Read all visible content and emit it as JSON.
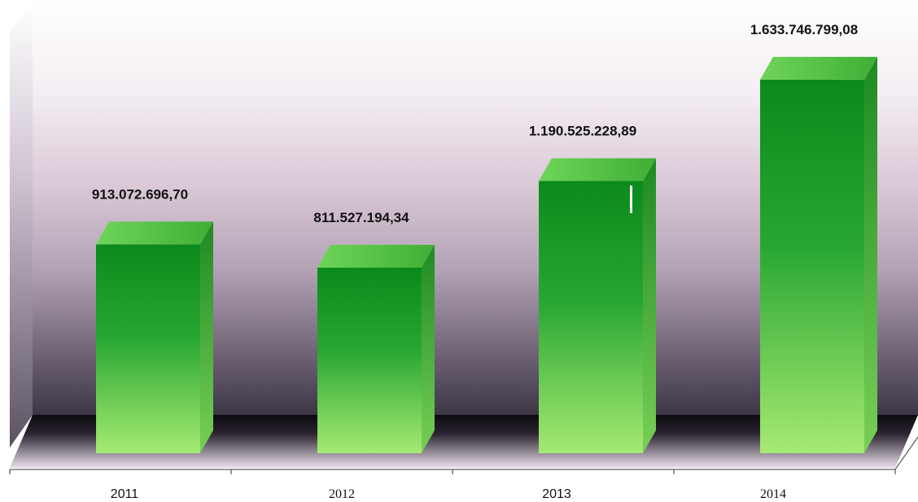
{
  "chart_data": {
    "type": "bar",
    "title": "",
    "xlabel": "",
    "ylabel": "",
    "categories": [
      "2011",
      "2012",
      "2013",
      "2014"
    ],
    "values": [
      913072696.7,
      811527194.34,
      1190525228.89,
      1633746799.08
    ],
    "data_labels": [
      "913.072.696,70",
      "811.527.194,34",
      "1.190.525.228,89",
      "1.633.746.799,08"
    ],
    "ylim": [
      0,
      1800000000
    ],
    "style": "3d",
    "grid": false,
    "legend": "none",
    "colors": {
      "bar_dark": "#0b8a1c",
      "bar_light": "#a6ea72",
      "bar_top": "#4cc33a",
      "bar_side": "#2f9a2a",
      "floor_dark": "#14101a",
      "backwall_top": "#ffffff",
      "backwall_bottom": "#3c3645"
    }
  }
}
